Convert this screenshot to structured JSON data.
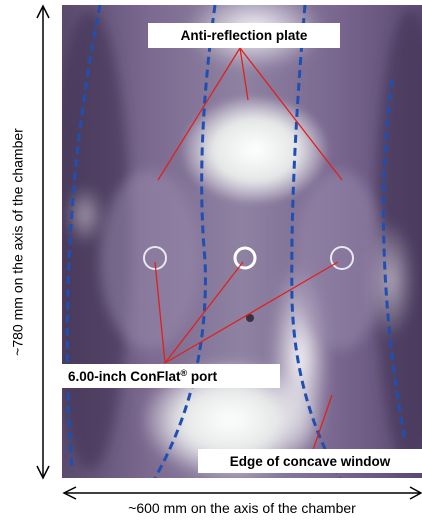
{
  "labels": {
    "anti_reflection": "Anti-reflection plate",
    "conflat_port": [
      "6.00-inch ConFlat",
      "®",
      " port"
    ],
    "edge_window": "Edge of concave window"
  },
  "dimensions": {
    "vertical": "~780 mm on the axis of the chamber",
    "horizontal": "~600 mm on the axis of the chamber"
  }
}
